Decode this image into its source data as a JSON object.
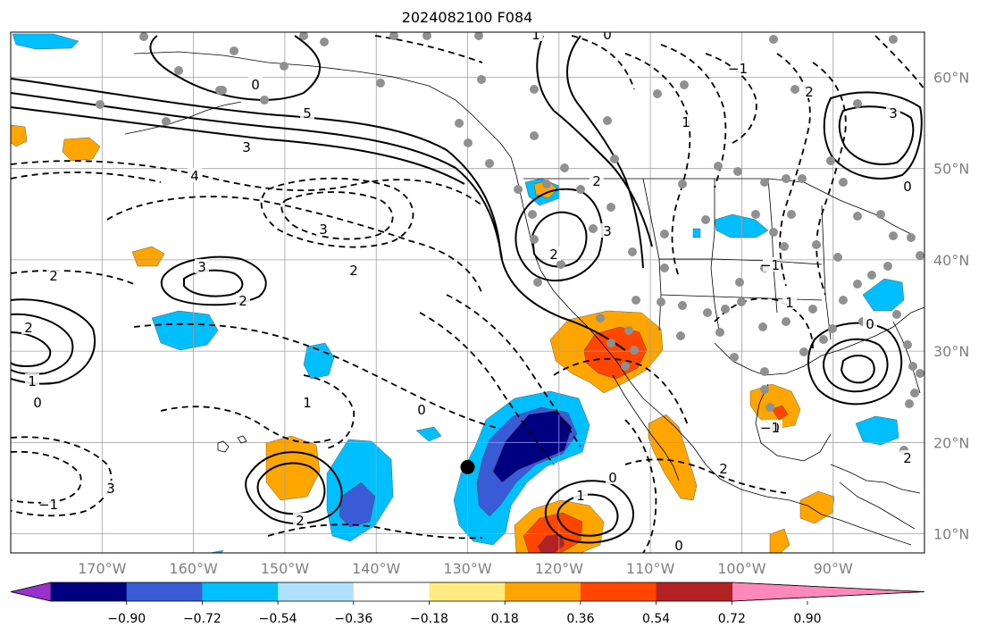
{
  "title": "2024082100 F084",
  "map": {
    "lon_labels": [
      "170°W",
      "160°W",
      "150°W",
      "140°W",
      "130°W",
      "120°W",
      "110°W",
      "100°W",
      "90°W"
    ],
    "lat_labels": [
      "60°N",
      "50°N",
      "40°N",
      "30°N",
      "20°N",
      "10°N"
    ],
    "lon_range": [
      -180,
      -80
    ],
    "lat_range": [
      8,
      66
    ],
    "marker": {
      "lon": -130,
      "lat": 17.3
    }
  },
  "colorbar": {
    "colors": [
      "#9932cc",
      "#000080",
      "#3a5bd6",
      "#00bfff",
      "#b0e0ff",
      "#ffffff",
      "#ffeb80",
      "#ffa500",
      "#ff4500",
      "#b22222",
      "#ff88bb"
    ],
    "tick_labels": [
      "−0.90",
      "−0.72",
      "−0.54",
      "−0.36",
      "−0.18",
      "0.18",
      "0.36",
      "0.54",
      "0.72",
      "0.90"
    ]
  },
  "contour_labels": [
    "2",
    "0",
    "1",
    "−1",
    "2",
    "3",
    "2",
    "0",
    "5",
    "3",
    "4",
    "3",
    "2",
    "1",
    "0",
    "2",
    "3",
    "2",
    "1",
    "0",
    "−1",
    "1",
    "2",
    "3",
    "0",
    "−1",
    "1",
    "0",
    "2",
    "0",
    "−1",
    "2",
    "0",
    "1",
    "2",
    "3",
    "0"
  ],
  "colors": {
    "grid": "#a0a0a0",
    "coast": "#000000",
    "station": "#909090",
    "axis_text": "#808080"
  }
}
